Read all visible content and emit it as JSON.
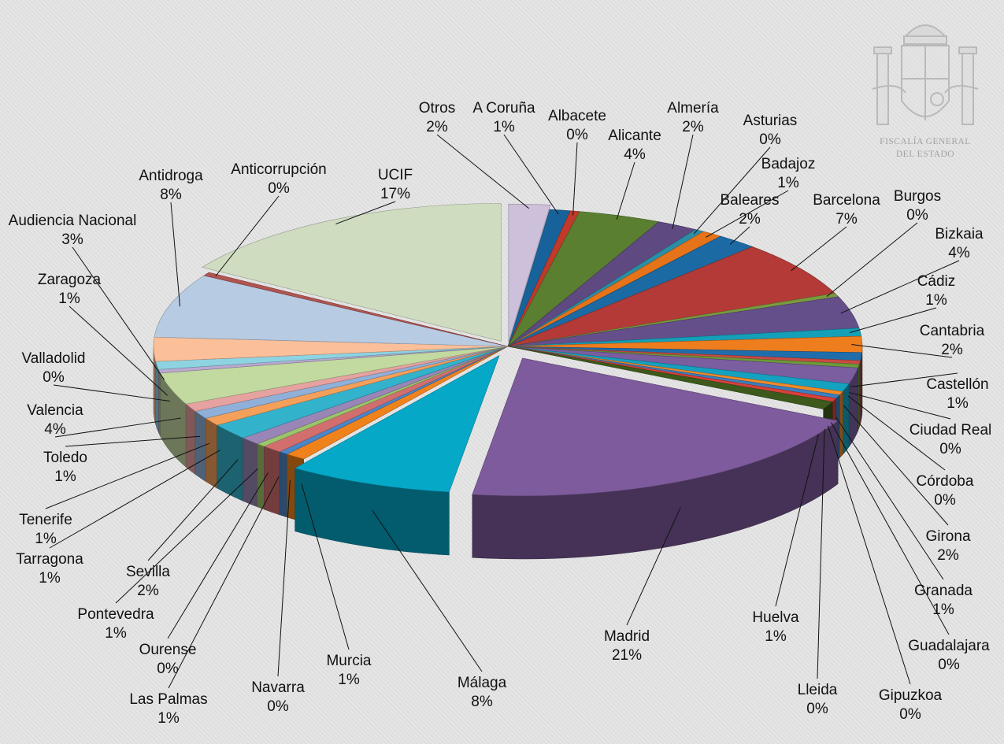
{
  "emblem": {
    "line1": "FISCALÍA GENERAL",
    "line2": "DEL ESTADO"
  },
  "chart_data": {
    "type": "pie",
    "title": "",
    "legend": "none",
    "slices": [
      {
        "label": "Otros",
        "value": 2,
        "color": "#ccc0da"
      },
      {
        "label": "A Coruña",
        "value": 1,
        "color": "#17629a"
      },
      {
        "label": "Albacete",
        "value": 0,
        "color": "#c0392b"
      },
      {
        "label": "Alicante",
        "value": 4,
        "color": "#5a7f31"
      },
      {
        "label": "Almería",
        "value": 2,
        "color": "#5e4980"
      },
      {
        "label": "Asturias",
        "value": 0,
        "color": "#2a8fa6"
      },
      {
        "label": "Badajoz",
        "value": 1,
        "color": "#e6731a"
      },
      {
        "label": "Baleares",
        "value": 2,
        "color": "#1b6aa3"
      },
      {
        "label": "Barcelona",
        "value": 7,
        "color": "#b33a36"
      },
      {
        "label": "Burgos",
        "value": 0,
        "color": "#7a9a3f"
      },
      {
        "label": "Bizkaia",
        "value": 4,
        "color": "#654f8a"
      },
      {
        "label": "Cádiz",
        "value": 1,
        "color": "#14a0b8"
      },
      {
        "label": "Cantabria",
        "value": 2,
        "color": "#ee7d1e"
      },
      {
        "label": "Castellón",
        "value": 1,
        "color": "#1f6eab"
      },
      {
        "label": "Ciudad Real",
        "value": 0,
        "color": "#c94a45"
      },
      {
        "label": "Córdoba",
        "value": 0,
        "color": "#6e9a3a"
      },
      {
        "label": "Girona",
        "value": 2,
        "color": "#7a5ea0"
      },
      {
        "label": "Granada",
        "value": 1,
        "color": "#15a1c0"
      },
      {
        "label": "Guadalajara",
        "value": 0,
        "color": "#f08a2a"
      },
      {
        "label": "Gipuzkoa",
        "value": 0,
        "color": "#3a7fc0"
      },
      {
        "label": "Lleida",
        "value": 0,
        "color": "#d9403a"
      },
      {
        "label": "Huelva",
        "value": 1,
        "color": "#3d5a1c"
      },
      {
        "label": "Madrid",
        "value": 21,
        "color": "#7d5b9c"
      },
      {
        "label": "Málaga",
        "value": 8,
        "color": "#05a8c7"
      },
      {
        "label": "Murcia",
        "value": 1,
        "color": "#f0821c"
      },
      {
        "label": "Navarra",
        "value": 0,
        "color": "#4a86c8"
      },
      {
        "label": "Las Palmas",
        "value": 1,
        "color": "#d26e6e"
      },
      {
        "label": "Ourense",
        "value": 0,
        "color": "#9cc46b"
      },
      {
        "label": "Pontevedra",
        "value": 1,
        "color": "#9a86b6"
      },
      {
        "label": "Sevilla",
        "value": 2,
        "color": "#33b2cc"
      },
      {
        "label": "Tarragona",
        "value": 1,
        "color": "#f4a05a"
      },
      {
        "label": "Tenerife",
        "value": 1,
        "color": "#8fb0d8"
      },
      {
        "label": "Toledo",
        "value": 1,
        "color": "#e6a2a0"
      },
      {
        "label": "Valencia",
        "value": 4,
        "color": "#c2d9a0"
      },
      {
        "label": "Valladolid",
        "value": 0,
        "color": "#b9a9d0"
      },
      {
        "label": "Zaragoza",
        "value": 1,
        "color": "#8ed3e2"
      },
      {
        "label": "Audiencia Nacional",
        "value": 3,
        "color": "#fbbf9a"
      },
      {
        "label": "Antidroga",
        "value": 8,
        "color": "#b7cbe2"
      },
      {
        "label": "Anticorrupción",
        "value": 0,
        "color": "#b05552"
      },
      {
        "label": "UCIF",
        "value": 17,
        "color": "#cfdcc0"
      }
    ]
  }
}
